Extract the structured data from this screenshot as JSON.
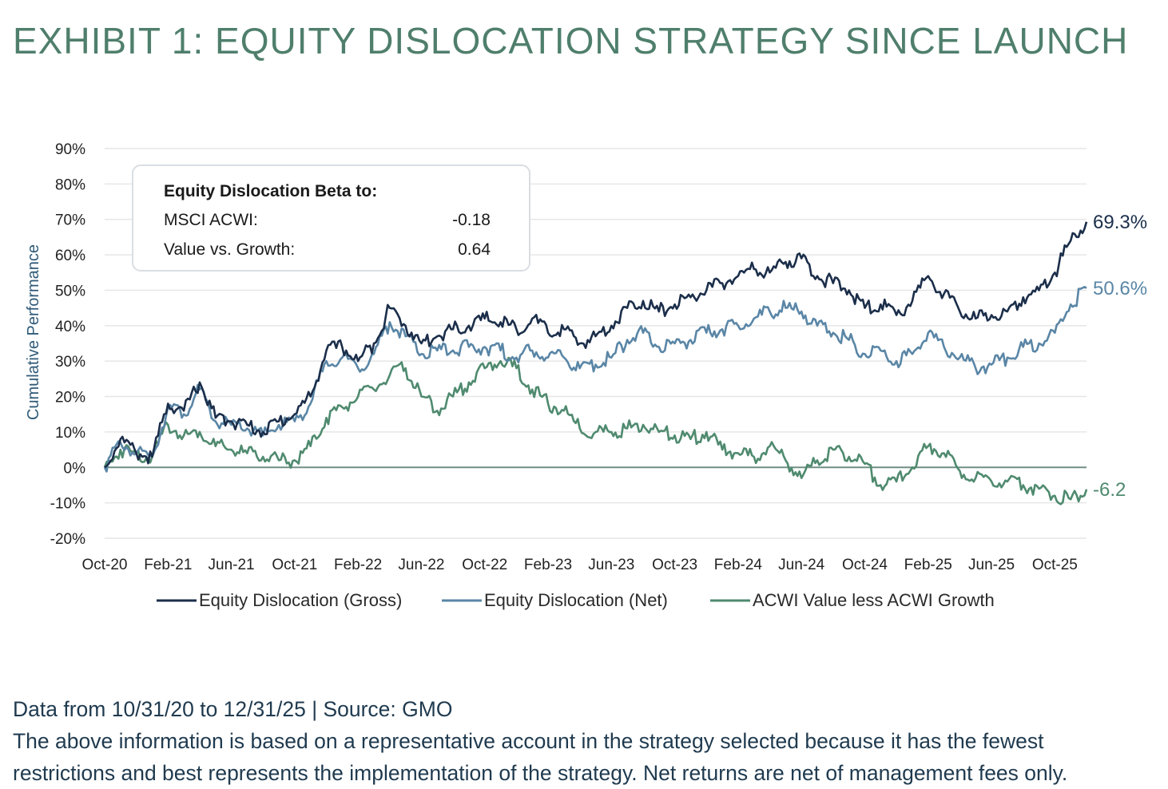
{
  "title": "EXHIBIT 1: EQUITY DISLOCATION STRATEGY SINCE LAUNCH",
  "footer": {
    "line1": "Data from 10/31/20 to 12/31/25 | Source: GMO",
    "line2": "The above information is based on a representative account in the strategy selected because it has the fewest",
    "line3": "restrictions and best represents the implementation of the strategy. Net returns are net of management fees only."
  },
  "beta_box": {
    "heading": "Equity Dislocation Beta to:",
    "rows": [
      {
        "label": "MSCI ACWI:",
        "value": "-0.18"
      },
      {
        "label": "Value vs. Growth:",
        "value": "0.64"
      }
    ]
  },
  "colors": {
    "gross": "#1b2e4a",
    "net": "#5a86a6",
    "value_growth": "#4f8a6f",
    "grid": "#e6e6e6",
    "zero": "#6f8f85"
  },
  "chart_data": {
    "type": "line",
    "ylabel": "Cumulative Performance",
    "ylim": [
      -20,
      90
    ],
    "yticks": [
      "90%",
      "80%",
      "70%",
      "60%",
      "50%",
      "40%",
      "30%",
      "20%",
      "10%",
      "0%",
      "-10%",
      "-20%"
    ],
    "xlim": [
      "Oct-20",
      "Dec-25"
    ],
    "x_tick_labels": [
      "Oct-20",
      "Feb-21",
      "Jun-21",
      "Oct-21",
      "Feb-22",
      "Jun-22",
      "Oct-22",
      "Feb-23",
      "Jun-23",
      "Oct-23",
      "Feb-24",
      "Jun-24",
      "Oct-24",
      "Feb-25",
      "Jun-25",
      "Oct-25"
    ],
    "grid": true,
    "legend": "bottom",
    "x": [
      "Oct-20",
      "Nov-20",
      "Dec-20",
      "Jan-21",
      "Feb-21",
      "Mar-21",
      "Apr-21",
      "May-21",
      "Jun-21",
      "Jul-21",
      "Aug-21",
      "Sep-21",
      "Oct-21",
      "Nov-21",
      "Dec-21",
      "Jan-22",
      "Feb-22",
      "Mar-22",
      "Apr-22",
      "May-22",
      "Jun-22",
      "Jul-22",
      "Aug-22",
      "Sep-22",
      "Oct-22",
      "Nov-22",
      "Dec-22",
      "Jan-23",
      "Feb-23",
      "Mar-23",
      "Apr-23",
      "May-23",
      "Jun-23",
      "Jul-23",
      "Aug-23",
      "Sep-23",
      "Oct-23",
      "Nov-23",
      "Dec-23",
      "Jan-24",
      "Feb-24",
      "Mar-24",
      "Apr-24",
      "May-24",
      "Jun-24",
      "Jul-24",
      "Aug-24",
      "Sep-24",
      "Oct-24",
      "Nov-24",
      "Dec-24",
      "Jan-25",
      "Feb-25",
      "Mar-25",
      "Apr-25",
      "May-25",
      "Jun-25",
      "Jul-25",
      "Aug-25",
      "Sep-25",
      "Oct-25",
      "Nov-25",
      "Dec-25"
    ],
    "series": [
      {
        "name": "Equity Dislocation (Gross)",
        "end_label": "69.3%",
        "values": [
          0,
          8,
          4,
          3,
          18,
          16,
          24,
          14,
          13,
          12,
          10,
          13,
          15,
          20,
          33,
          34,
          30,
          35,
          45,
          40,
          35,
          37,
          39,
          40,
          42,
          41,
          39,
          42,
          38,
          39,
          35,
          37,
          40,
          45,
          47,
          44,
          46,
          48,
          50,
          52,
          54,
          56,
          55,
          58,
          59,
          54,
          52,
          50,
          45,
          46,
          43,
          47,
          54,
          49,
          44,
          42,
          43,
          44,
          48,
          50,
          55,
          64,
          69.3
        ]
      },
      {
        "name": "Equity Dislocation (Net)",
        "end_label": "50.6%",
        "values": [
          0,
          7,
          4,
          3,
          17,
          15,
          22,
          13,
          12,
          11,
          9,
          12,
          13,
          18,
          30,
          31,
          28,
          32,
          41,
          37,
          32,
          33,
          33,
          34,
          34,
          33,
          31,
          33,
          31,
          31,
          28,
          29,
          31,
          36,
          38,
          34,
          35,
          36,
          38,
          39,
          40,
          42,
          44,
          45,
          44,
          40,
          38,
          36,
          32,
          33,
          30,
          32,
          38,
          34,
          31,
          28,
          29,
          31,
          34,
          35,
          38,
          46,
          50.6
        ]
      },
      {
        "name": "ACWI Value less ACWI Growth",
        "end_label": "-6.2",
        "values": [
          0,
          5,
          4,
          3,
          12,
          9,
          10,
          6,
          5,
          4,
          3,
          2,
          2,
          6,
          14,
          17,
          20,
          22,
          26,
          28,
          20,
          16,
          20,
          24,
          28,
          30,
          28,
          22,
          18,
          16,
          11,
          10,
          10,
          11,
          12,
          10,
          9,
          8,
          10,
          5,
          4,
          3,
          6,
          2,
          -3,
          2,
          5,
          3,
          1,
          -5,
          -4,
          0,
          6,
          4,
          -1,
          -3,
          -4,
          -4,
          -5,
          -6,
          -8,
          -9,
          -6.2
        ]
      }
    ]
  }
}
